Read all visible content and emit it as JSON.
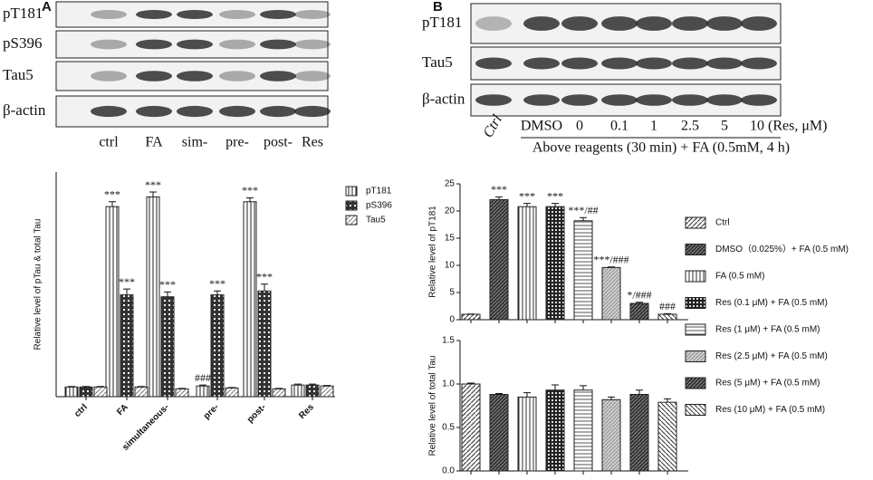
{
  "panels": {
    "A": {
      "label": "A",
      "blot_rows": [
        "pT181",
        "pS396",
        "Tau5",
        "β-actin"
      ],
      "lanes": [
        "ctrl",
        "FA",
        "sim-",
        "pre-",
        "post-",
        "Res"
      ]
    },
    "B": {
      "label": "B",
      "blot_rows": [
        "pT181",
        "Tau5",
        "β-actin"
      ],
      "lanes": [
        "Ctrl",
        "DMSO",
        "0",
        "0.1",
        "1",
        "2.5",
        "5",
        "10 (Res, μM)"
      ],
      "caption": "Above reagents (30 min) + FA (0.5mM, 4 h)"
    }
  },
  "chart_data": [
    {
      "type": "grouped_bar",
      "ylabel": "Relative level of pTau & total Tau",
      "ylim": [
        0,
        24
      ],
      "categories": [
        "ctrl",
        "FA",
        "simultaneous-",
        "pre-",
        "post-",
        "Res"
      ],
      "series": [
        {
          "name": "pT181",
          "values": [
            1,
            19.6,
            20.6,
            1.1,
            20.1,
            1.2
          ],
          "errors": [
            0.05,
            0.5,
            0.5,
            0.1,
            0.4,
            0.1
          ],
          "value_labels": [
            null,
            "***",
            "***",
            "###",
            "***",
            null
          ]
        },
        {
          "name": "pS396",
          "values": [
            1,
            10.5,
            10.3,
            10.5,
            10.9,
            1.2
          ],
          "errors": [
            0.05,
            0.6,
            0.5,
            0.4,
            0.7,
            0.1
          ],
          "value_labels": [
            null,
            "***",
            "***",
            "***",
            "***",
            null
          ]
        },
        {
          "name": "Tau5",
          "values": [
            1,
            1,
            0.8,
            0.9,
            0.8,
            1.1
          ],
          "errors": [
            0.05,
            0.05,
            0.05,
            0.05,
            0.05,
            0.05
          ]
        }
      ]
    },
    {
      "type": "bar",
      "ylabel": "Relative level of pT181",
      "ylim": [
        0,
        25
      ],
      "yticks": [
        0,
        5,
        10,
        15,
        20,
        25
      ],
      "categories": [
        "Ctrl",
        "DMSO（0.025%）+ FA (0.5 mM)",
        "FA (0.5 mM)",
        "Res (0.1 μM) + FA (0.5 mM)",
        "Res (1 μM) + FA (0.5 mM)",
        "Res (2.5 μM) + FA (0.5 mM)",
        "Res (5 μM) + FA (0.5 mM)",
        "Res (10 μM) + FA (0.5 mM)"
      ],
      "values": [
        1,
        22.1,
        20.8,
        20.8,
        18.2,
        9.6,
        3,
        1
      ],
      "errors": [
        0.05,
        0.5,
        0.6,
        0.6,
        0.6,
        0.1,
        0.2,
        0.1
      ],
      "value_labels": [
        null,
        "***",
        "***",
        "***",
        "***/##",
        "***/###",
        "*/###",
        "###"
      ]
    },
    {
      "type": "bar",
      "ylabel": "Relative level of total Tau",
      "ylim": [
        0,
        1.5
      ],
      "yticks": [
        {
          "value": 0,
          "label": "0.0"
        },
        0.5,
        {
          "value": 1,
          "label": "1.0"
        },
        {
          "value": 1.5,
          "label": "1.5"
        }
      ],
      "values": [
        1,
        0.88,
        0.85,
        0.93,
        0.93,
        0.82,
        0.88,
        0.79
      ],
      "errors": [
        0.01,
        0.01,
        0.05,
        0.06,
        0.05,
        0.03,
        0.05,
        0.04
      ]
    }
  ]
}
